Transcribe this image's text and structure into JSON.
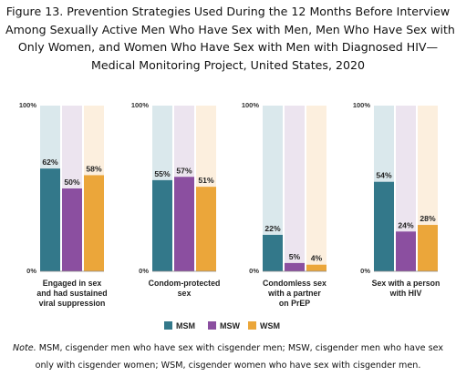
{
  "title_lines": [
    "Figure 13. Prevention Strategies Used During the 12 Months Before Interview",
    "Among Sexually Active Men Who Have Sex with Men, Men Who Have Sex with",
    "Only Women, and Women Who Have Sex with Men with Diagnosed HIV—",
    "Medical Monitoring Project, United States, 2020"
  ],
  "note": {
    "label": "Note.",
    "line1_rest": " MSM, cisgender men who have sex with cisgender men; MSW, cisgender men who have sex",
    "line2": "only with cisgender women; WSM, cisgender women who have sex with cisgender men."
  },
  "chart_data": {
    "type": "bar",
    "ylim": [
      0,
      100
    ],
    "y_tick_labels": [
      "100%",
      "0%"
    ],
    "legend_position": "bottom",
    "series": [
      {
        "name": "MSM",
        "color": "#33788a",
        "bg_color": "#dae8ec"
      },
      {
        "name": "MSW",
        "color": "#8b4fa0",
        "bg_color": "#ece4ef"
      },
      {
        "name": "WSM",
        "color": "#eba63a",
        "bg_color": "#fcefde"
      }
    ],
    "panels": [
      {
        "category": [
          "Engaged in sex",
          "and had sustained",
          "viral suppression"
        ],
        "values": [
          62,
          50,
          58
        ],
        "labels": [
          "62%",
          "50%",
          "58%"
        ]
      },
      {
        "category": [
          "Condom-protected",
          "sex"
        ],
        "values": [
          55,
          57,
          51
        ],
        "labels": [
          "55%",
          "57%",
          "51%"
        ]
      },
      {
        "category": [
          "Condomless sex",
          "with a partner",
          "on PrEP"
        ],
        "values": [
          22,
          5,
          4
        ],
        "labels": [
          "22%",
          "5%",
          "4%"
        ]
      },
      {
        "category": [
          "Sex with a person",
          "with HIV"
        ],
        "values": [
          54,
          24,
          28
        ],
        "labels": [
          "54%",
          "24%",
          "28%"
        ]
      }
    ]
  }
}
